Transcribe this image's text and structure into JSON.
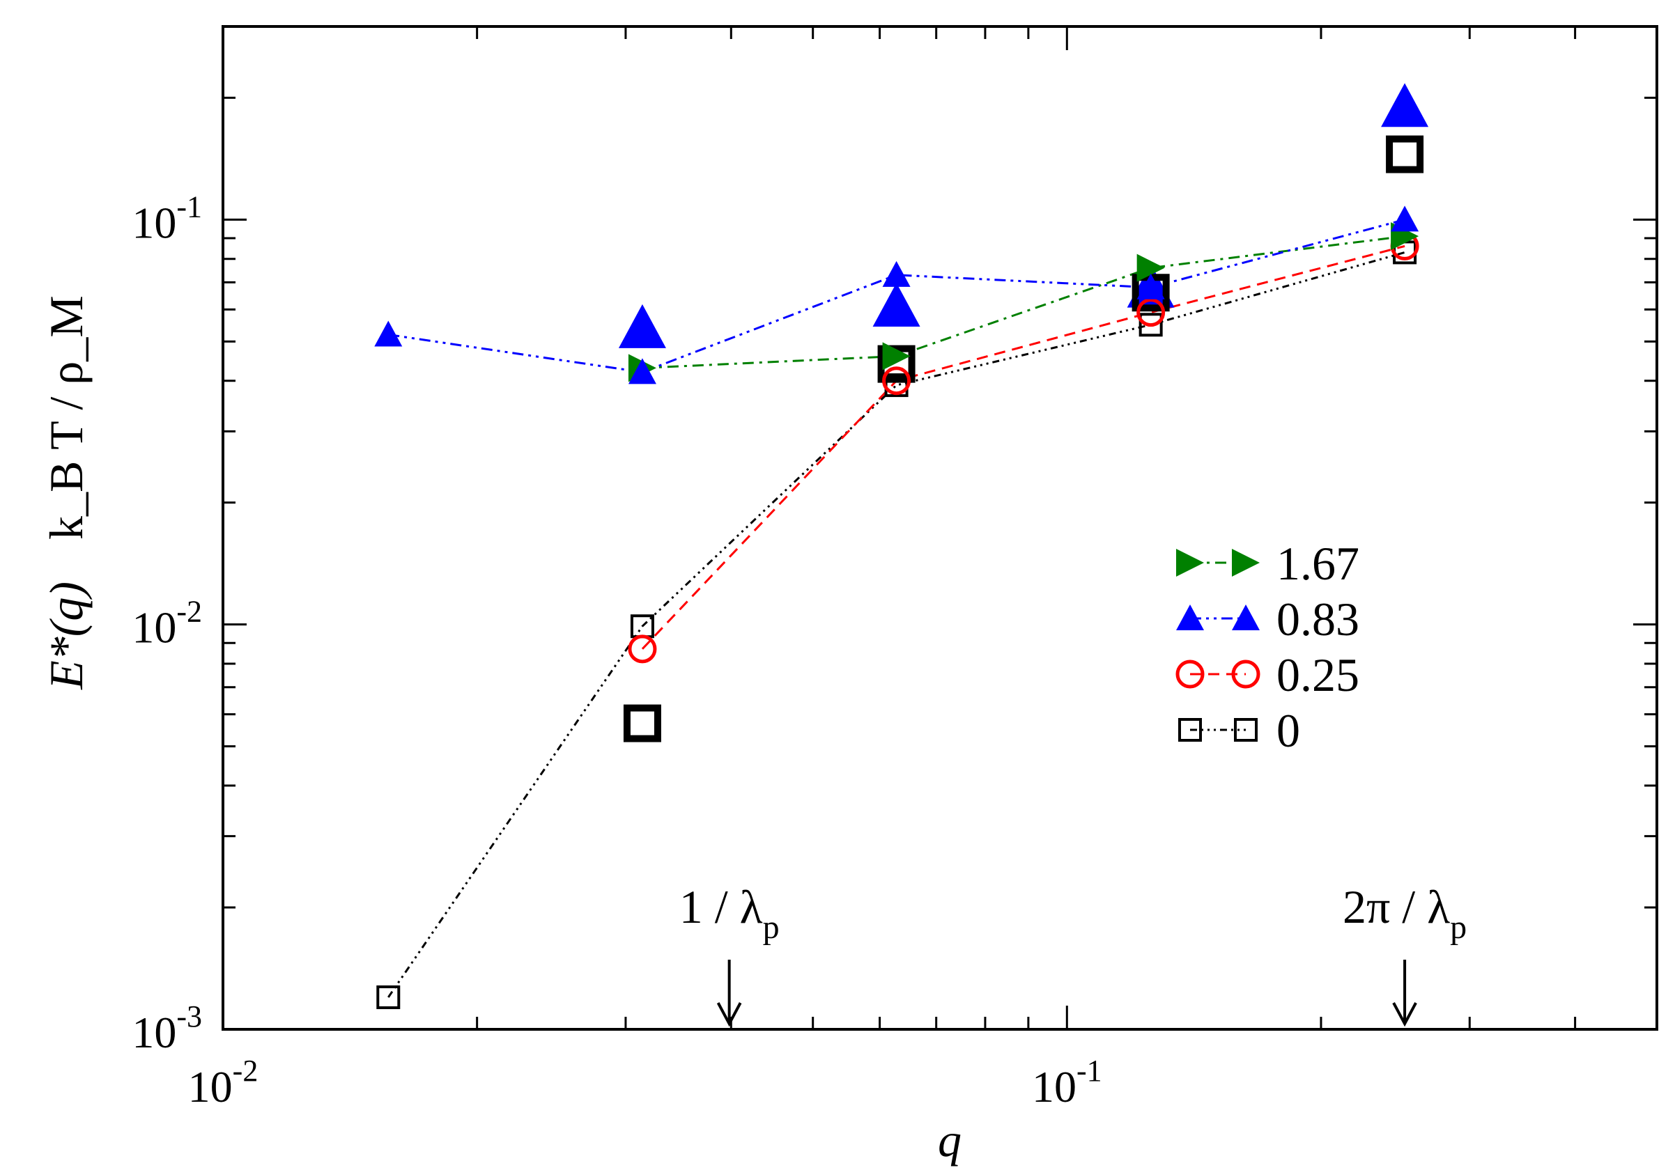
{
  "chart_data": {
    "type": "line",
    "xscale": "log",
    "yscale": "log",
    "xlim": [
      0.01,
      0.5
    ],
    "ylim": [
      0.001,
      0.3
    ],
    "xlabel": "q",
    "ylabel": "E*(q)",
    "ylabel_units": "k_B T / ρ_M",
    "x_ticks": [
      {
        "value": 0.01,
        "mantissa": "10",
        "exp": "-2"
      },
      {
        "value": 0.1,
        "mantissa": "10",
        "exp": "-1"
      }
    ],
    "y_ticks": [
      {
        "value": 0.001,
        "mantissa": "10",
        "exp": "-3"
      },
      {
        "value": 0.01,
        "mantissa": "10",
        "exp": "-2"
      },
      {
        "value": 0.1,
        "mantissa": "10",
        "exp": "-1"
      }
    ],
    "legend_position": "center-right",
    "series": [
      {
        "name": "1.67",
        "color": "#008000",
        "marker": "triangle-right",
        "dash": "dash-dot",
        "x": [
          0.0314,
          0.0628,
          0.1257,
          0.2513
        ],
        "y": [
          0.043,
          0.046,
          0.076,
          0.091
        ]
      },
      {
        "name": "0.83",
        "color": "#0000ff",
        "marker": "triangle-up",
        "dash": "dash-dot-dot",
        "x": [
          0.0157,
          0.0314,
          0.0628,
          0.1257,
          0.2513
        ],
        "y": [
          0.052,
          0.042,
          0.073,
          0.068,
          0.1
        ]
      },
      {
        "name": "0.25",
        "color": "#ff0000",
        "marker": "circle",
        "dash": "dashed",
        "x": [
          0.0314,
          0.0628,
          0.1257,
          0.2513
        ],
        "y": [
          0.0087,
          0.04,
          0.059,
          0.086
        ]
      },
      {
        "name": "0",
        "color": "#000000",
        "marker": "square",
        "dash": "dash-dot-dot-dot",
        "x": [
          0.0157,
          0.0314,
          0.0628,
          0.1257,
          0.2513
        ],
        "y": [
          0.0012,
          0.0099,
          0.039,
          0.055,
          0.083
        ]
      }
    ],
    "extra_points": [
      {
        "series": "0.83",
        "x": 0.0314,
        "y": 0.054,
        "size": "large"
      },
      {
        "series": "0.83",
        "x": 0.0628,
        "y": 0.061,
        "size": "large"
      },
      {
        "series": "0.83",
        "x": 0.1257,
        "y": 0.068,
        "size": "large"
      },
      {
        "series": "0.83",
        "x": 0.2513,
        "y": 0.19,
        "size": "large"
      },
      {
        "series": "0",
        "x": 0.0314,
        "y": 0.0057,
        "size": "large"
      },
      {
        "series": "0",
        "x": 0.0628,
        "y": 0.044,
        "size": "large"
      },
      {
        "series": "0",
        "x": 0.1257,
        "y": 0.066,
        "size": "large"
      },
      {
        "series": "0",
        "x": 0.2513,
        "y": 0.145,
        "size": "large"
      }
    ],
    "annotations": [
      {
        "base": "1 / λ",
        "sub": "p",
        "x": 0.0398
      },
      {
        "base": "2π / λ",
        "sub": "p",
        "x": 0.2513
      }
    ]
  }
}
